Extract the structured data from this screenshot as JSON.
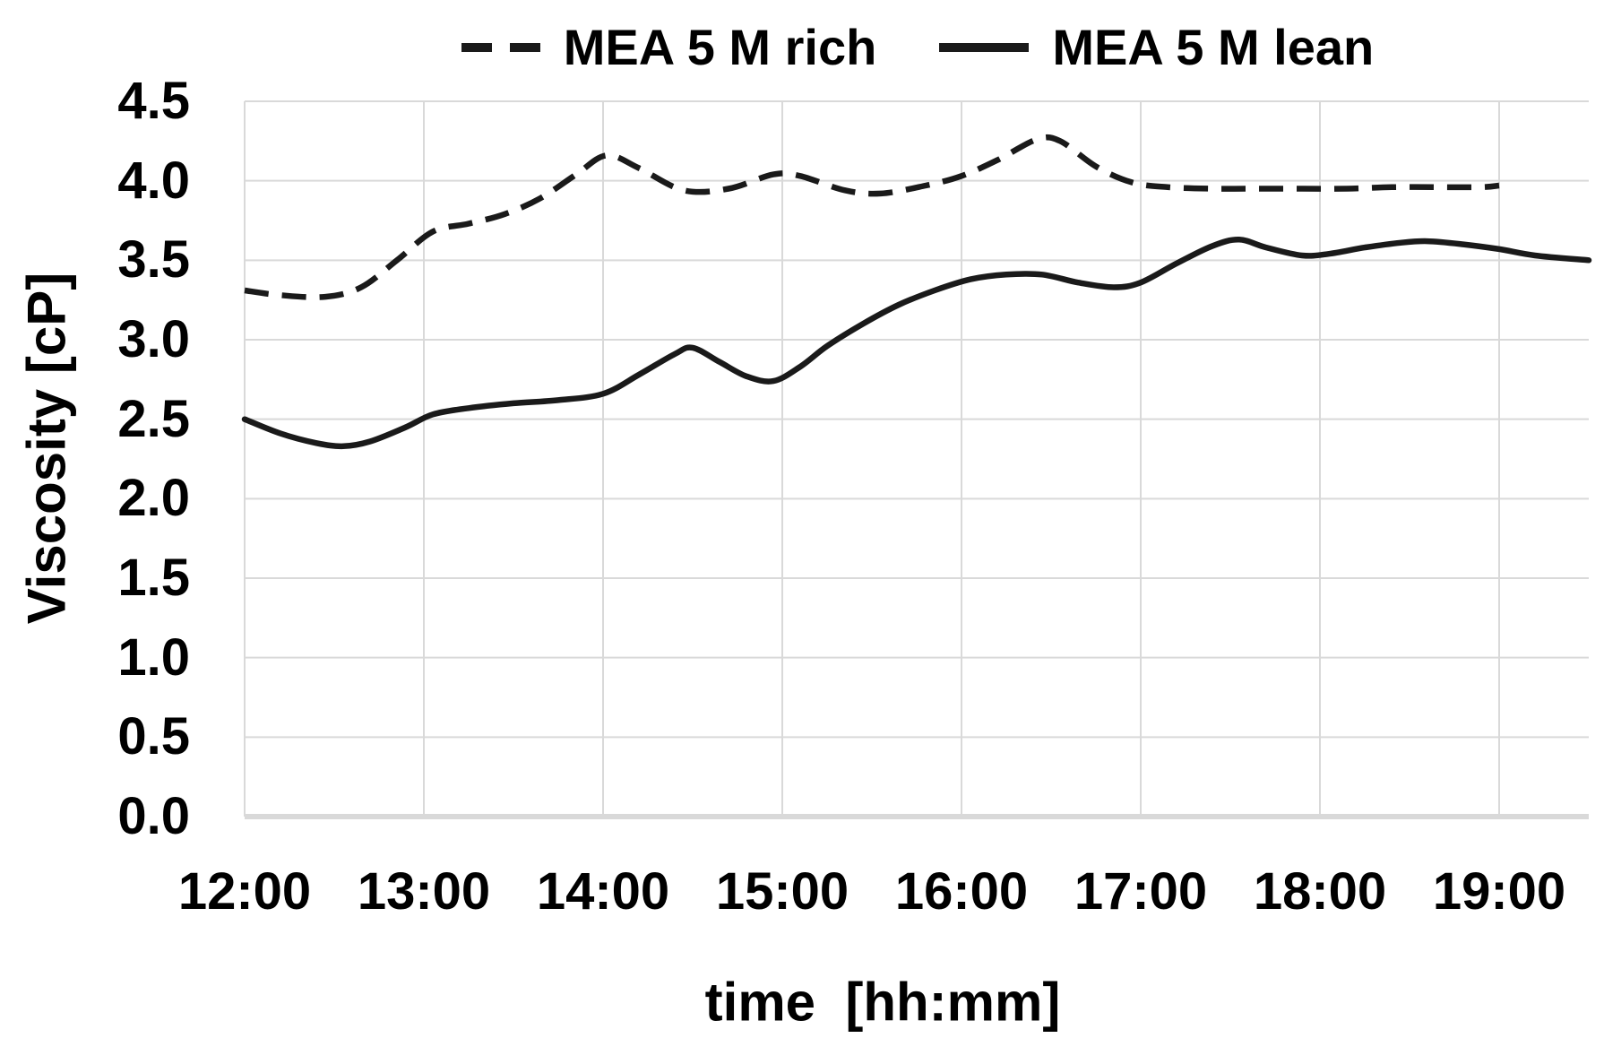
{
  "figure": {
    "background": "#ffffff"
  },
  "colors": {
    "series_line": "#1a1a1a",
    "gridline": "#d9d9d9",
    "axis_baseline": "#d9d9d9",
    "text": "#000000"
  },
  "chart_data": {
    "type": "line",
    "title": "",
    "xlabel": "time  [hh:mm]",
    "ylabel": "Viscosity [cP]",
    "x_tick_labels": [
      "12:00",
      "13:00",
      "14:00",
      "15:00",
      "16:00",
      "17:00",
      "18:00",
      "19:00"
    ],
    "x_tick_hours": [
      12,
      13,
      14,
      15,
      16,
      17,
      18,
      19
    ],
    "y_tick_labels": [
      "4.5",
      "4.0",
      "3.5",
      "3.0",
      "2.5",
      "2.0",
      "1.5",
      "1.0",
      "0.5",
      "0.0"
    ],
    "y_tick_values": [
      4.5,
      4.0,
      3.5,
      3.0,
      2.5,
      2.0,
      1.5,
      1.0,
      0.5,
      0.0
    ],
    "xlim_hours": [
      12,
      19.5
    ],
    "ylim": [
      0,
      4.5
    ],
    "grid": true,
    "legend_position": "top-center",
    "units": {
      "x": "hh:mm",
      "y": "cP"
    },
    "series": [
      {
        "name": "MEA 5 M rich",
        "line_style": "dashed",
        "points": [
          [
            12.0,
            3.31
          ],
          [
            12.2,
            3.28
          ],
          [
            12.45,
            3.27
          ],
          [
            12.65,
            3.33
          ],
          [
            12.85,
            3.5
          ],
          [
            13.05,
            3.68
          ],
          [
            13.25,
            3.73
          ],
          [
            13.45,
            3.79
          ],
          [
            13.65,
            3.89
          ],
          [
            13.85,
            4.04
          ],
          [
            14.02,
            4.16
          ],
          [
            14.2,
            4.08
          ],
          [
            14.45,
            3.94
          ],
          [
            14.7,
            3.95
          ],
          [
            14.95,
            4.04
          ],
          [
            15.1,
            4.03
          ],
          [
            15.35,
            3.94
          ],
          [
            15.55,
            3.92
          ],
          [
            15.8,
            3.97
          ],
          [
            16.0,
            4.03
          ],
          [
            16.2,
            4.13
          ],
          [
            16.42,
            4.26
          ],
          [
            16.55,
            4.25
          ],
          [
            16.75,
            4.09
          ],
          [
            16.95,
            3.99
          ],
          [
            17.15,
            3.96
          ],
          [
            17.4,
            3.95
          ],
          [
            17.65,
            3.95
          ],
          [
            17.9,
            3.95
          ],
          [
            18.15,
            3.95
          ],
          [
            18.4,
            3.96
          ],
          [
            18.65,
            3.96
          ],
          [
            18.9,
            3.96
          ],
          [
            19.0,
            3.97
          ]
        ]
      },
      {
        "name": "MEA 5 M lean",
        "line_style": "solid",
        "points": [
          [
            12.0,
            2.5
          ],
          [
            12.2,
            2.41
          ],
          [
            12.4,
            2.35
          ],
          [
            12.55,
            2.33
          ],
          [
            12.7,
            2.36
          ],
          [
            12.9,
            2.45
          ],
          [
            13.05,
            2.53
          ],
          [
            13.25,
            2.57
          ],
          [
            13.5,
            2.6
          ],
          [
            13.75,
            2.62
          ],
          [
            14.0,
            2.66
          ],
          [
            14.2,
            2.78
          ],
          [
            14.4,
            2.91
          ],
          [
            14.5,
            2.95
          ],
          [
            14.65,
            2.86
          ],
          [
            14.8,
            2.77
          ],
          [
            14.95,
            2.74
          ],
          [
            15.1,
            2.83
          ],
          [
            15.25,
            2.96
          ],
          [
            15.45,
            3.1
          ],
          [
            15.65,
            3.22
          ],
          [
            15.85,
            3.31
          ],
          [
            16.05,
            3.38
          ],
          [
            16.25,
            3.41
          ],
          [
            16.45,
            3.41
          ],
          [
            16.65,
            3.36
          ],
          [
            16.85,
            3.33
          ],
          [
            17.0,
            3.36
          ],
          [
            17.2,
            3.48
          ],
          [
            17.4,
            3.59
          ],
          [
            17.55,
            3.63
          ],
          [
            17.7,
            3.58
          ],
          [
            17.9,
            3.53
          ],
          [
            18.05,
            3.54
          ],
          [
            18.25,
            3.58
          ],
          [
            18.45,
            3.61
          ],
          [
            18.6,
            3.62
          ],
          [
            18.8,
            3.6
          ],
          [
            19.0,
            3.57
          ],
          [
            19.2,
            3.53
          ],
          [
            19.5,
            3.5
          ]
        ]
      }
    ]
  }
}
